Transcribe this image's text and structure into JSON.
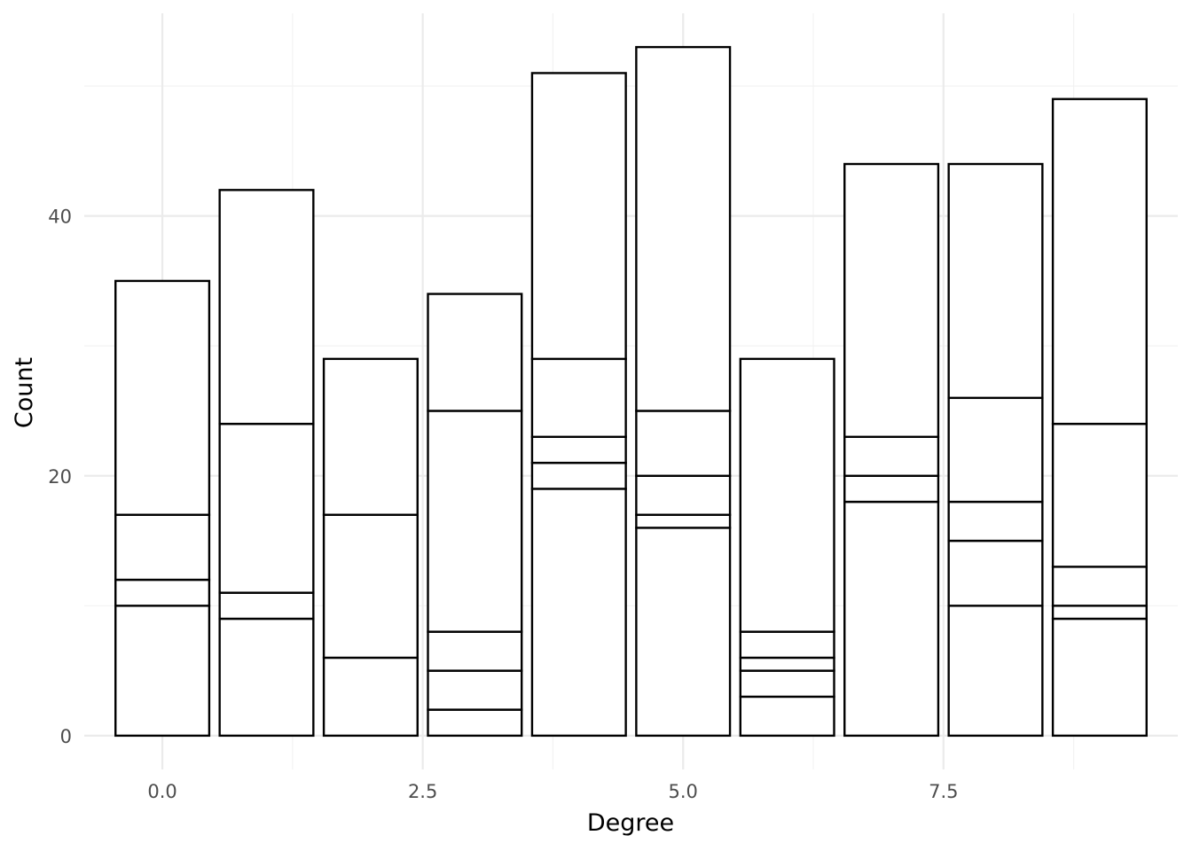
{
  "chart_data": {
    "type": "bar",
    "stacked": true,
    "xlabel": "Degree",
    "ylabel": "Count",
    "x": [
      0,
      1,
      2,
      3,
      4,
      5,
      6,
      7,
      8,
      9
    ],
    "segment_boundaries": [
      [
        10,
        12,
        17,
        35
      ],
      [
        9,
        11,
        24,
        42
      ],
      [
        6,
        17,
        29
      ],
      [
        2,
        5,
        8,
        25,
        34
      ],
      [
        19,
        21,
        23,
        29,
        51
      ],
      [
        16,
        17,
        20,
        25,
        53
      ],
      [
        3,
        5,
        6,
        8,
        29
      ],
      [
        18,
        20,
        23,
        44
      ],
      [
        10,
        15,
        18,
        26,
        44
      ],
      [
        9,
        10,
        13,
        24,
        49
      ]
    ],
    "totals": [
      35,
      42,
      29,
      34,
      51,
      53,
      29,
      44,
      44,
      49
    ],
    "xlim": [
      -0.75,
      9.75
    ],
    "ylim": [
      -2.6,
      55.6
    ],
    "x_ticks": [
      0,
      2.5,
      5,
      7.5
    ],
    "x_tick_labels": [
      "0.0",
      "2.5",
      "5.0",
      "7.5"
    ],
    "y_ticks": [
      0,
      20,
      40
    ],
    "y_tick_labels": [
      "0",
      "20",
      "40"
    ],
    "grid": true,
    "legend": "none",
    "colors": {
      "fill": "#ffffff",
      "outline": "#000000",
      "grid": "#ebebeb"
    }
  }
}
